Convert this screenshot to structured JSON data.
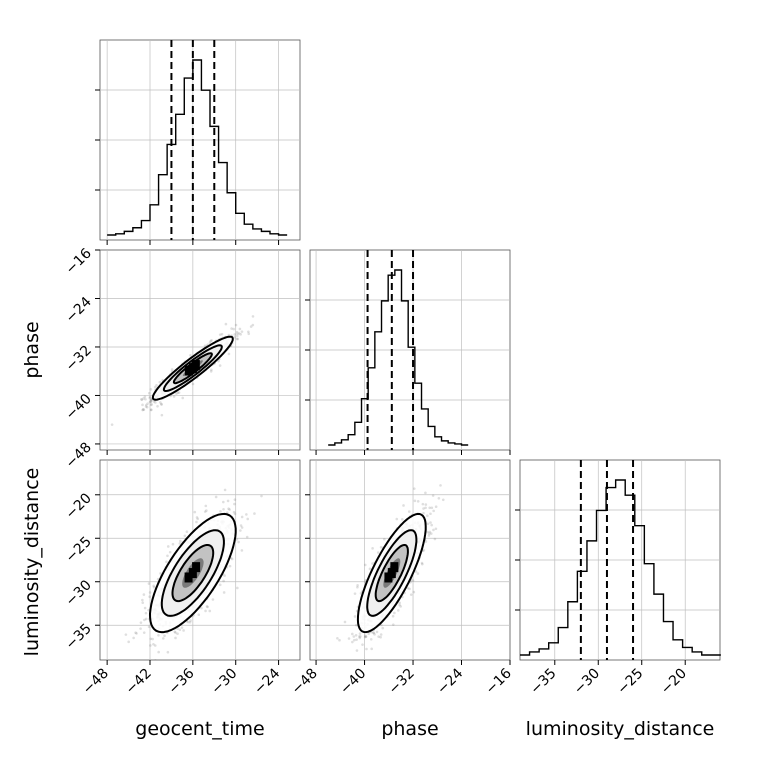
{
  "chart_data": {
    "type": "corner",
    "parameters": [
      {
        "name": "geocent_time",
        "label": "geocent_time",
        "xlim": [
          -49,
          -21
        ],
        "ticks": [
          -48,
          -42,
          -36,
          -30,
          -24
        ],
        "tick_labels": [
          "−48",
          "−42",
          "−36",
          "−30",
          "−24"
        ],
        "quantiles": [
          -39,
          -36,
          -33
        ],
        "histogram": {
          "bin_start": -48,
          "bin_width": 1.2,
          "counts": [
            0,
            1,
            3,
            6,
            12,
            25,
            50,
            75,
            100,
            130,
            145,
            120,
            90,
            60,
            35,
            18,
            9,
            5,
            3,
            1,
            0
          ]
        }
      },
      {
        "name": "phase",
        "label": "phase",
        "xlim": [
          -49,
          -16
        ],
        "ticks": [
          -48,
          -40,
          -32,
          -24,
          -16
        ],
        "tick_labels": [
          "−48",
          "−40",
          "−32",
          "−24",
          "−16"
        ],
        "y_ticks": [
          -16,
          -24,
          -32,
          -40,
          -48
        ],
        "y_tick_labels": [
          "−16",
          "−24",
          "−32",
          "−40",
          "−48"
        ],
        "quantiles": [
          -39.5,
          -35.5,
          -32
        ],
        "histogram": {
          "bin_start": -46,
          "bin_width": 1.1,
          "counts": [
            0,
            2,
            5,
            10,
            22,
            45,
            75,
            110,
            140,
            165,
            170,
            140,
            95,
            60,
            35,
            18,
            8,
            4,
            2,
            1,
            0
          ]
        }
      },
      {
        "name": "luminosity_distance",
        "label": "luminosity_distance",
        "xlim": [
          -39,
          -16
        ],
        "ticks": [
          -35,
          -30,
          -25,
          -20
        ],
        "tick_labels": [
          "−35",
          "−30",
          "−25",
          "−20"
        ],
        "y_ticks": [
          -20,
          -25,
          -30,
          -35
        ],
        "y_tick_labels": [
          "−20",
          "−25",
          "−30",
          "−35"
        ],
        "quantiles": [
          -32,
          -29,
          -26
        ],
        "histogram": {
          "bin_start": -39,
          "bin_width": 1.1,
          "counts": [
            0,
            2,
            4,
            8,
            18,
            35,
            55,
            75,
            95,
            110,
            115,
            105,
            85,
            60,
            40,
            22,
            10,
            5,
            2,
            0,
            0
          ]
        }
      }
    ],
    "pairs": [
      {
        "x": "geocent_time",
        "y": "phase",
        "center": [
          -36,
          -35.5
        ],
        "sd": [
          2.8,
          2.6
        ],
        "correlation": 0.93
      },
      {
        "x": "geocent_time",
        "y": "luminosity_distance",
        "center": [
          -36,
          -29
        ],
        "sd": [
          3.0,
          3.4
        ],
        "correlation": 0.72
      },
      {
        "x": "phase",
        "y": "luminosity_distance",
        "center": [
          -35.5,
          -29
        ],
        "sd": [
          2.8,
          3.4
        ],
        "correlation": 0.78
      }
    ],
    "grid": true
  }
}
